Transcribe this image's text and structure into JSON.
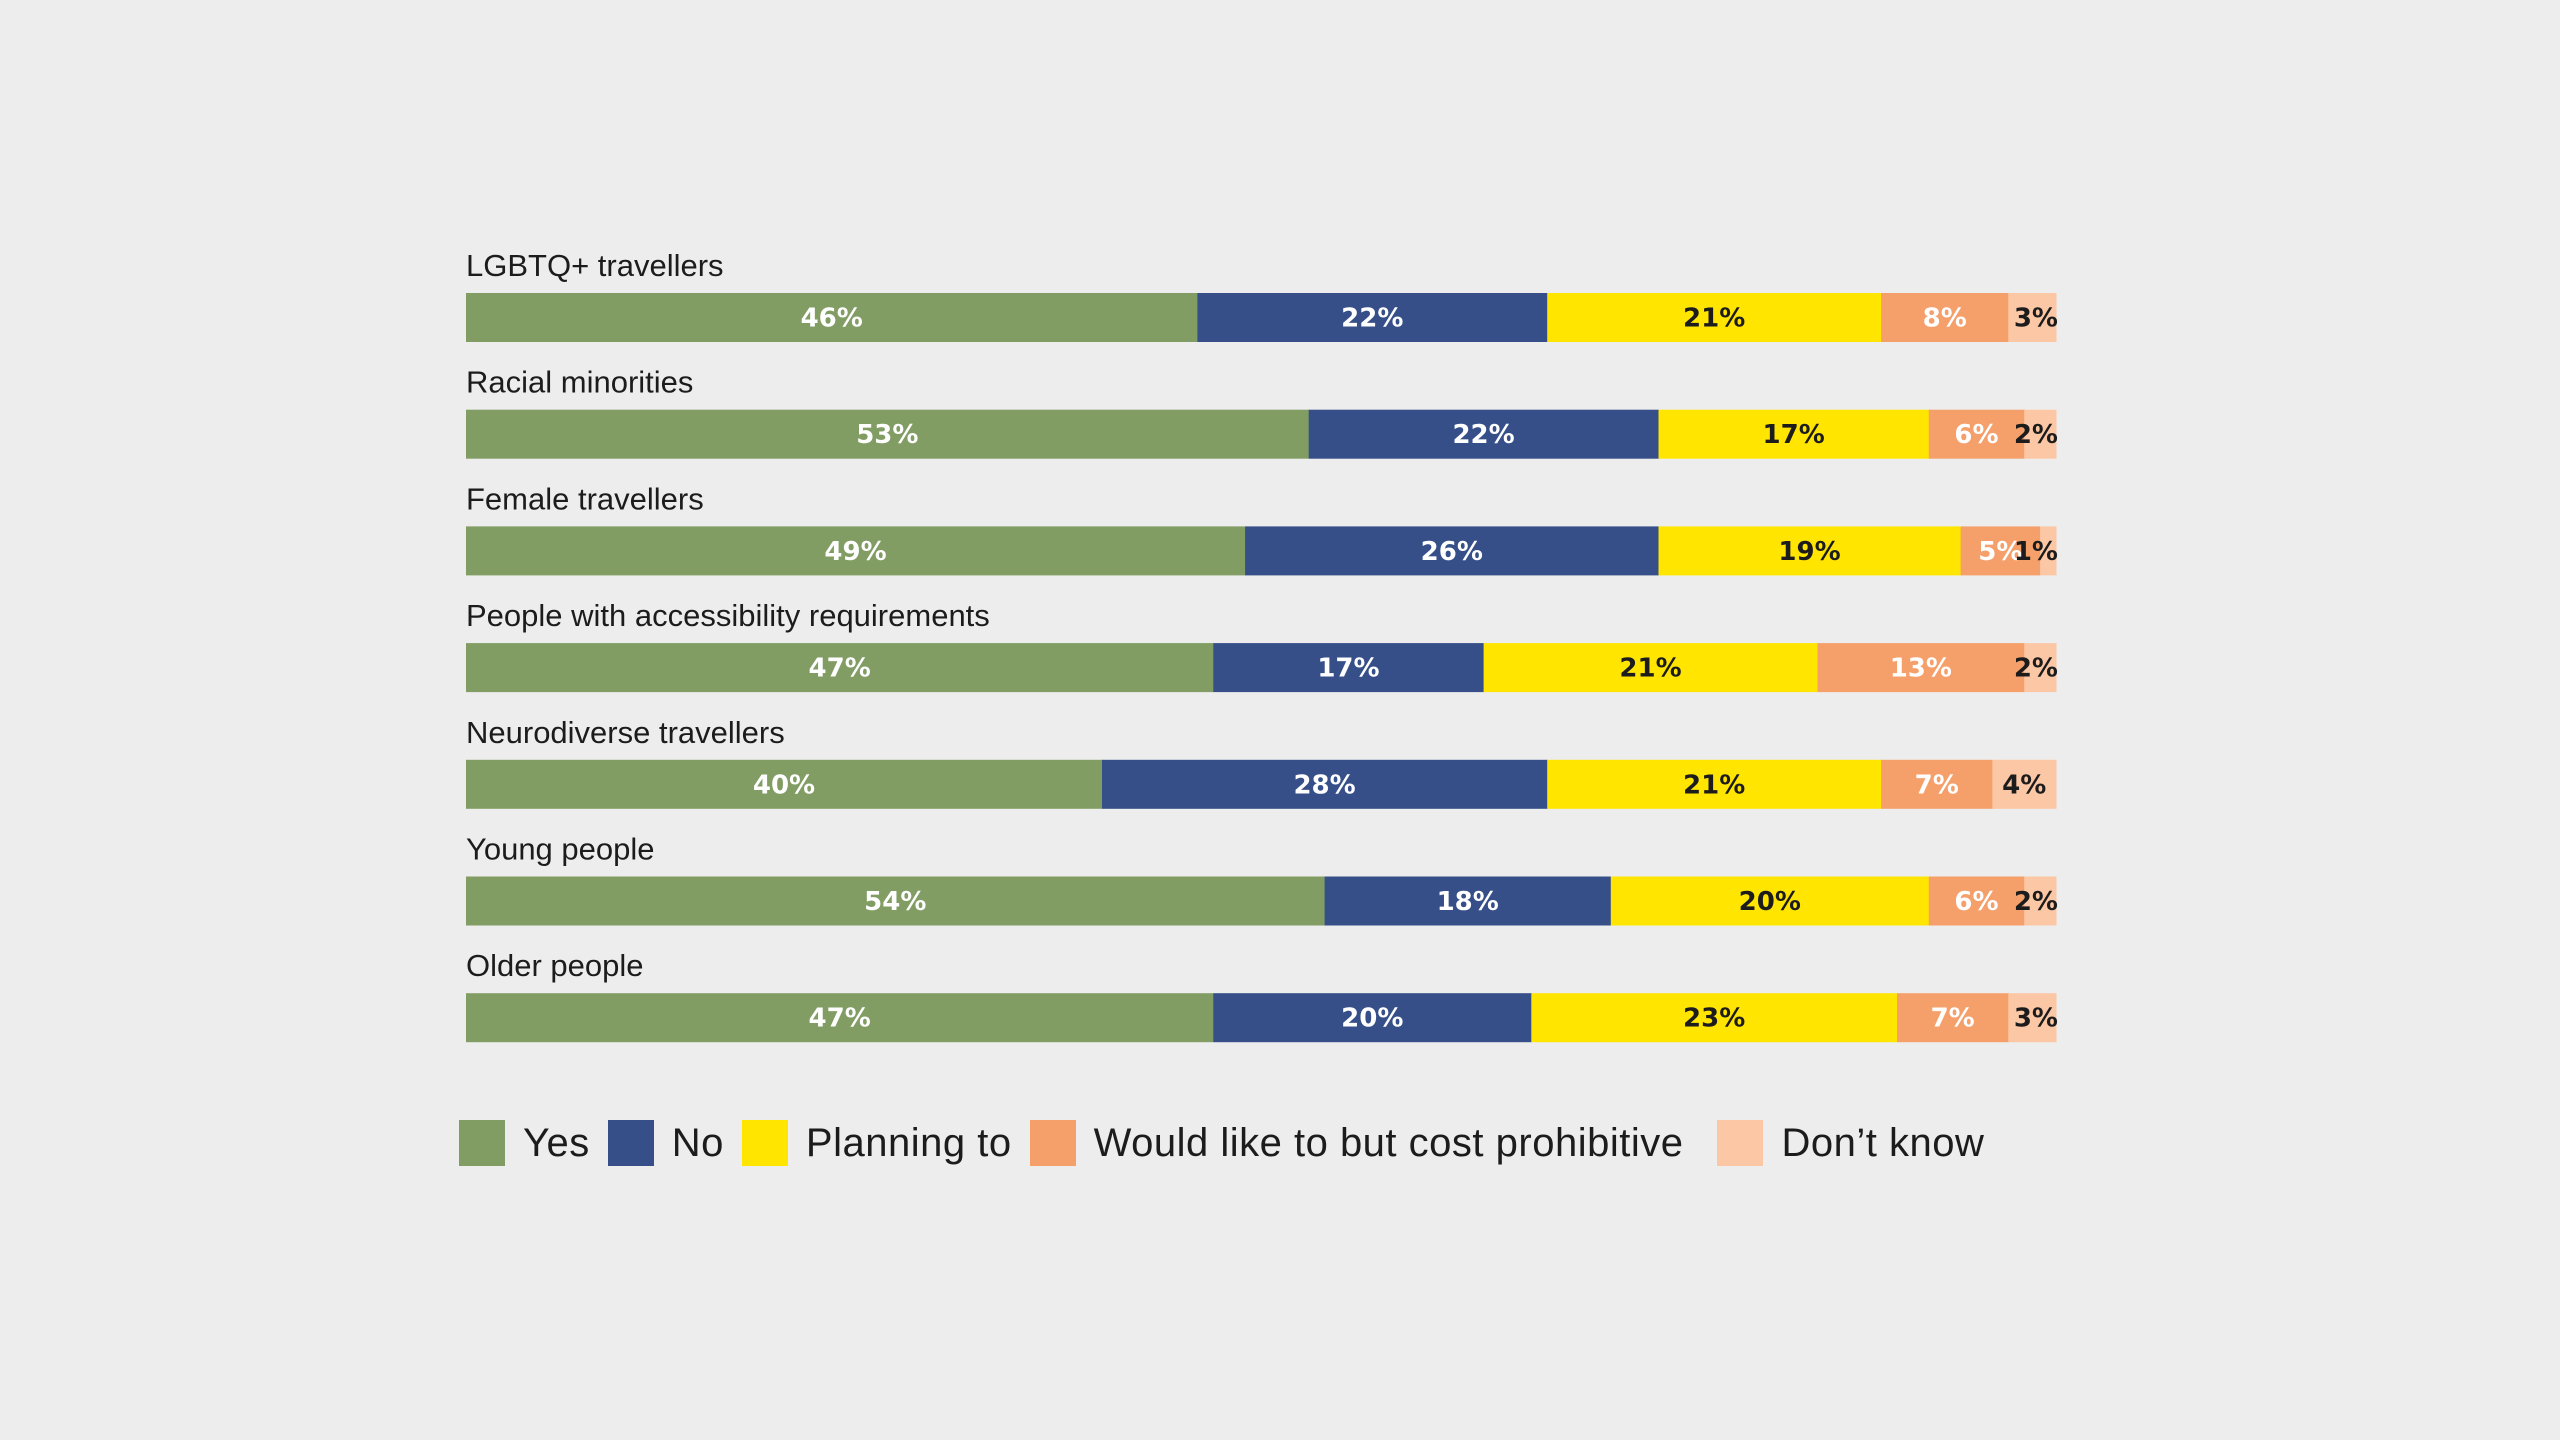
{
  "chart_data": {
    "type": "bar",
    "orientation": "horizontal",
    "stacked": true,
    "title": "",
    "xlabel": "",
    "ylabel": "",
    "xlim": [
      0,
      100
    ],
    "grid": false,
    "legend_position": "bottom",
    "categories": [
      "LGBTQ+ travellers",
      "Racial minorities",
      "Female travellers",
      "People with accessibility requirements",
      "Neurodiverse travellers",
      "Young people",
      "Older people"
    ],
    "series": [
      {
        "name": "Yes",
        "color": "#829d63",
        "label_color": "#ffffff",
        "values": [
          46,
          53,
          49,
          47,
          40,
          54,
          47
        ]
      },
      {
        "name": "No",
        "color": "#364f89",
        "label_color": "#ffffff",
        "values": [
          22,
          22,
          26,
          17,
          28,
          18,
          20
        ]
      },
      {
        "name": "Planning to",
        "color": "#ffe500",
        "label_color": "#1c1c1c",
        "values": [
          21,
          17,
          19,
          21,
          21,
          20,
          23
        ]
      },
      {
        "name": "Would like to but cost prohibitive",
        "color": "#f5a06a",
        "label_color": "#ffffff",
        "values": [
          8,
          6,
          5,
          13,
          7,
          6,
          7
        ]
      },
      {
        "name": "Don’t know",
        "color": "#fcc7a5",
        "label_color": "#1c1c1c",
        "values": [
          3,
          2,
          1,
          2,
          4,
          2,
          3
        ]
      }
    ],
    "value_suffix": "%"
  }
}
